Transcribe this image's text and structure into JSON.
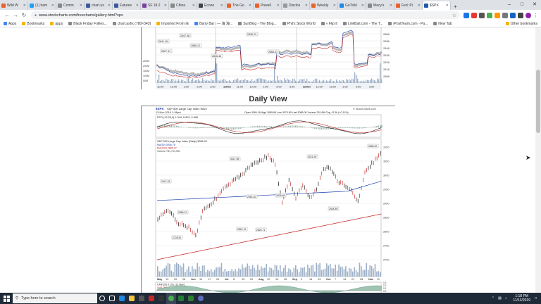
{
  "browser": {
    "tabs": [
      {
        "label": "Wild W",
        "color": "#e8632b"
      },
      {
        "label": "(1) ham",
        "color": "#1da1f2"
      },
      {
        "label": "Comm",
        "color": "#888888"
      },
      {
        "label": "chart.ux",
        "color": "#3b5998"
      },
      {
        "label": "Futures",
        "color": "#3b5998"
      },
      {
        "label": "SF 18.2",
        "color": "#7b3fa0"
      },
      {
        "label": "China",
        "color": "#888888"
      },
      {
        "label": "Econo",
        "color": "#444444"
      },
      {
        "label": "The Go",
        "color": "#e8632b"
      },
      {
        "label": "Powell",
        "color": "#e8632b"
      },
      {
        "label": "Disclos",
        "color": "#999999"
      },
      {
        "label": "Weekly",
        "color": "#e8632b"
      },
      {
        "label": "GoTickl",
        "color": "#1e88e5"
      },
      {
        "label": "Macy's",
        "color": "#888888"
      },
      {
        "label": "Fed: Pi",
        "color": "#e8632b"
      },
      {
        "label": "$SPX",
        "color": "#1e5aa8",
        "active": true
      }
    ],
    "new_tab": "+",
    "url": "www.stockcharts.com/freecharts/gallery.html?spx",
    "bookmarks": [
      {
        "label": "Apps",
        "color": "#4285f4"
      },
      {
        "label": "Bookmarks",
        "color": "#f4b400"
      },
      {
        "label": "apps",
        "color": "#f4b400"
      },
      {
        "label": "Black Friday Follies...",
        "color": "#888888"
      },
      {
        "label": "chart.ashx (780×343)",
        "color": "#888888"
      },
      {
        "label": "Imported From IE",
        "color": "#f4b400"
      },
      {
        "label": "Barry Bar | — 海 海...",
        "color": "#4285f4"
      },
      {
        "label": "SunBlog - The Blog...",
        "color": "#888888"
      },
      {
        "label": "Phil's Stock World",
        "color": "#888888"
      },
      {
        "label": "« Flip it",
        "color": "#888888"
      },
      {
        "label": "LinkBait.com - The T...",
        "color": "#888888"
      },
      {
        "label": "iPostTeam.com - Pa...",
        "color": "#888888"
      },
      {
        "label": "New Tab",
        "color": "#888888"
      }
    ],
    "other_bookmarks": "Other bookmarks"
  },
  "page": {
    "section_title": "Daily View",
    "intraday": {
      "price_labels": [
        "2841.45",
        "2847.58",
        "2856.12",
        "2827.41",
        "2836.22",
        "2826.48",
        "2866.51"
      ],
      "y_axis": [
        "2866",
        "2856",
        "2846",
        "2836",
        "2826",
        "2816",
        "2806"
      ],
      "x_axis": [
        "11:00",
        "12:00",
        "1:00",
        "2:00",
        "3:00",
        "11Nov",
        "11:00",
        "12:00",
        "1:00",
        "2:00",
        "3:00",
        "12Nov",
        "11:00",
        "12:00",
        "1:00",
        "2:00",
        "3:00"
      ],
      "volume_labels": [
        "250M",
        "200M",
        "150M",
        "100M",
        "50M"
      ]
    },
    "daily": {
      "header_symbol": "$SPX",
      "header_name": "S&P 500 Large Cap Index  INDX",
      "header_right": "© StockCharts.com",
      "header_date": "13-Nov-2019 1:18pm",
      "header_stats": "Open 3084.18  High 3085.84  Low 3070.80  Last 3085.00  Volume 781.8M  Chg +3.36 (+0.11%)",
      "ppo_legend": "PPO (12,26,9) 1.344, 0.870, 0.584",
      "price_legend": "S&P 500 Large Cap Index (Daily) 3085.00",
      "ma_legend_1": "MA(50) 3006.78",
      "ma_legend_2": "MA(200) 2885.37",
      "vol_legend": "Volume 781,794,531",
      "price_labels": [
        "2947.45",
        "3027.98",
        "2952.30",
        "3021.99",
        "3005.68",
        "2856.31",
        "2822.12",
        "2825.71",
        "2728.81",
        "2944.89",
        "3085.00"
      ],
      "y_axis": [
        "3100",
        "3050",
        "3000",
        "2950",
        "2900",
        "2850",
        "2800",
        "2750",
        "2700"
      ],
      "x_axis": [
        "May",
        "13",
        "20",
        "28",
        "Jun",
        "10",
        "17",
        "24",
        "Jul",
        "8",
        "15",
        "22",
        "Aug",
        "12",
        "19",
        "26",
        "Sep",
        "9",
        "16",
        "23",
        "Oct",
        "7",
        "14",
        "21",
        "28",
        "Nov",
        "11"
      ],
      "cmf_legend": "CMF(20) 0.161 (12 Nov)",
      "cmf_legend_2": "VolP / ASI (units)",
      "cmf_y": [
        "0.3",
        "0.2",
        "0.1",
        "0.0",
        "-0.1"
      ]
    }
  },
  "taskbar": {
    "search_placeholder": "Type here to search",
    "time": "1:18 PM",
    "date": "11/13/2019"
  }
}
